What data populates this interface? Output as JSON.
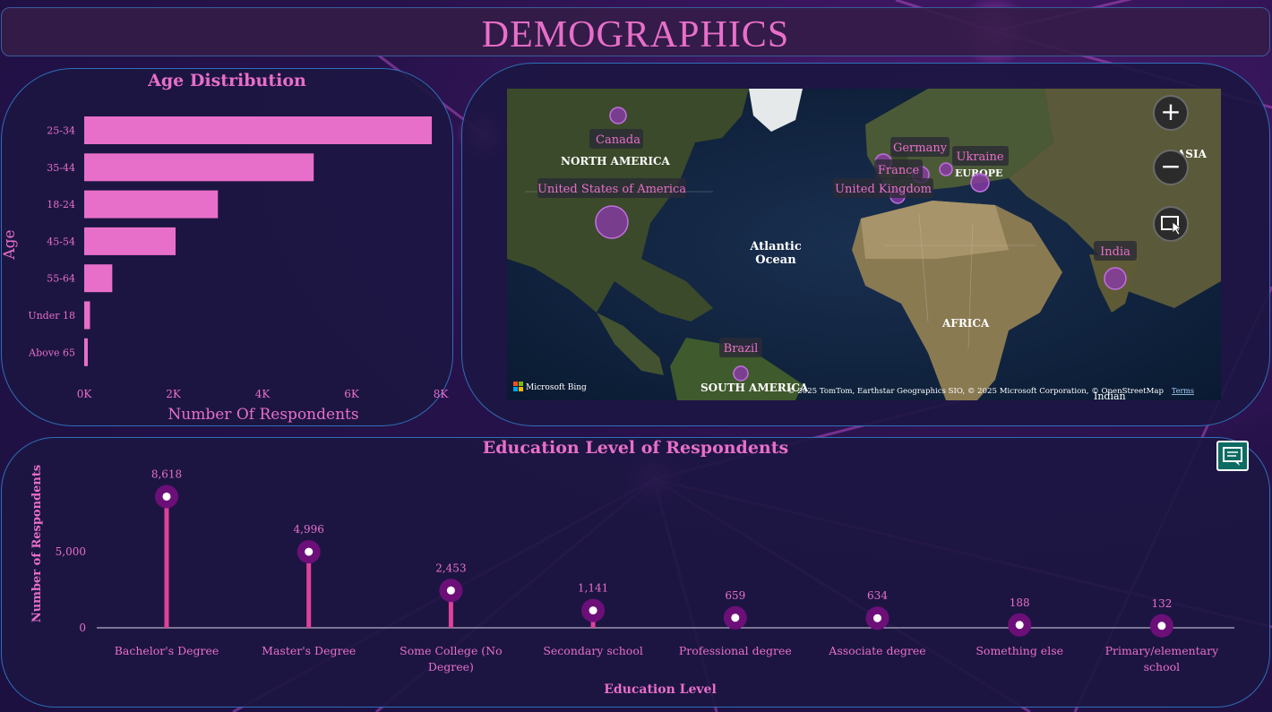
{
  "page": {
    "title": "DEMOGRAPHICS",
    "colors": {
      "accent": "#e86fc9",
      "background": "#1b1040",
      "panel_border": "#2f6fb8",
      "lollipop_dot": "#6d0f78",
      "lollipop_stem": "#e0409a"
    }
  },
  "chart_data": [
    {
      "type": "bar",
      "orientation": "horizontal",
      "title": "Age Distribution",
      "xlabel": "Number Of Respondents",
      "ylabel": "Age",
      "categories": [
        "25-34",
        "35-44",
        "18-24",
        "45-54",
        "55-64",
        "Under 18",
        "Above 65"
      ],
      "values": [
        7800,
        5150,
        3000,
        2050,
        630,
        130,
        80
      ],
      "xlim": [
        0,
        8000
      ],
      "xticks": [
        "0K",
        "2K",
        "4K",
        "6K",
        "8K"
      ],
      "xtick_values": [
        0,
        2000,
        4000,
        6000,
        8000
      ],
      "grid": false,
      "color": "#e86fc9"
    },
    {
      "type": "lollipop",
      "title": "Education Level of Respondents",
      "xlabel": "Education Level",
      "ylabel": "Number of Respondents",
      "categories": [
        "Bachelor's Degree",
        "Master's Degree",
        "Some College (No Degree)",
        "Secondary school",
        "Professional degree",
        "Associate degree",
        "Something else",
        "Primary/elementary school"
      ],
      "values": [
        8618,
        4996,
        2453,
        1141,
        659,
        634,
        188,
        132
      ],
      "data_labels": [
        "8,618",
        "4,996",
        "2,453",
        "1,141",
        "659",
        "634",
        "188",
        "132"
      ],
      "yticks": [
        "5,000",
        "0"
      ],
      "ytick_values": [
        5000,
        0
      ],
      "ylim": [
        0,
        10000
      ],
      "grid": false
    }
  ],
  "map": {
    "locations": [
      {
        "name": "Canada"
      },
      {
        "name": "United States of America"
      },
      {
        "name": "Germany"
      },
      {
        "name": "France"
      },
      {
        "name": "United Kingdom"
      },
      {
        "name": "Ukraine"
      },
      {
        "name": "India"
      },
      {
        "name": "Brazil"
      }
    ],
    "base_labels": {
      "north_america": "NORTH AMERICA",
      "atlantic": "Atlantic\nOcean",
      "africa": "AFRICA",
      "europe": "EUROPE",
      "asia": "ASIA",
      "south_america": "SOUTH AMERICA",
      "indian": "Indian"
    },
    "brand": "Microsoft Bing",
    "attribution": "© 2025 TomTom, Earthstar Geographics SIO, © 2025 Microsoft Corporation, © OpenStreetMap",
    "terms": "Terms",
    "controls": {
      "zoom_in_icon": "plus-icon",
      "zoom_out_icon": "minus-icon",
      "style_icon": "map-style-icon"
    }
  },
  "toolbar": {
    "chat_icon": "chat-icon"
  }
}
